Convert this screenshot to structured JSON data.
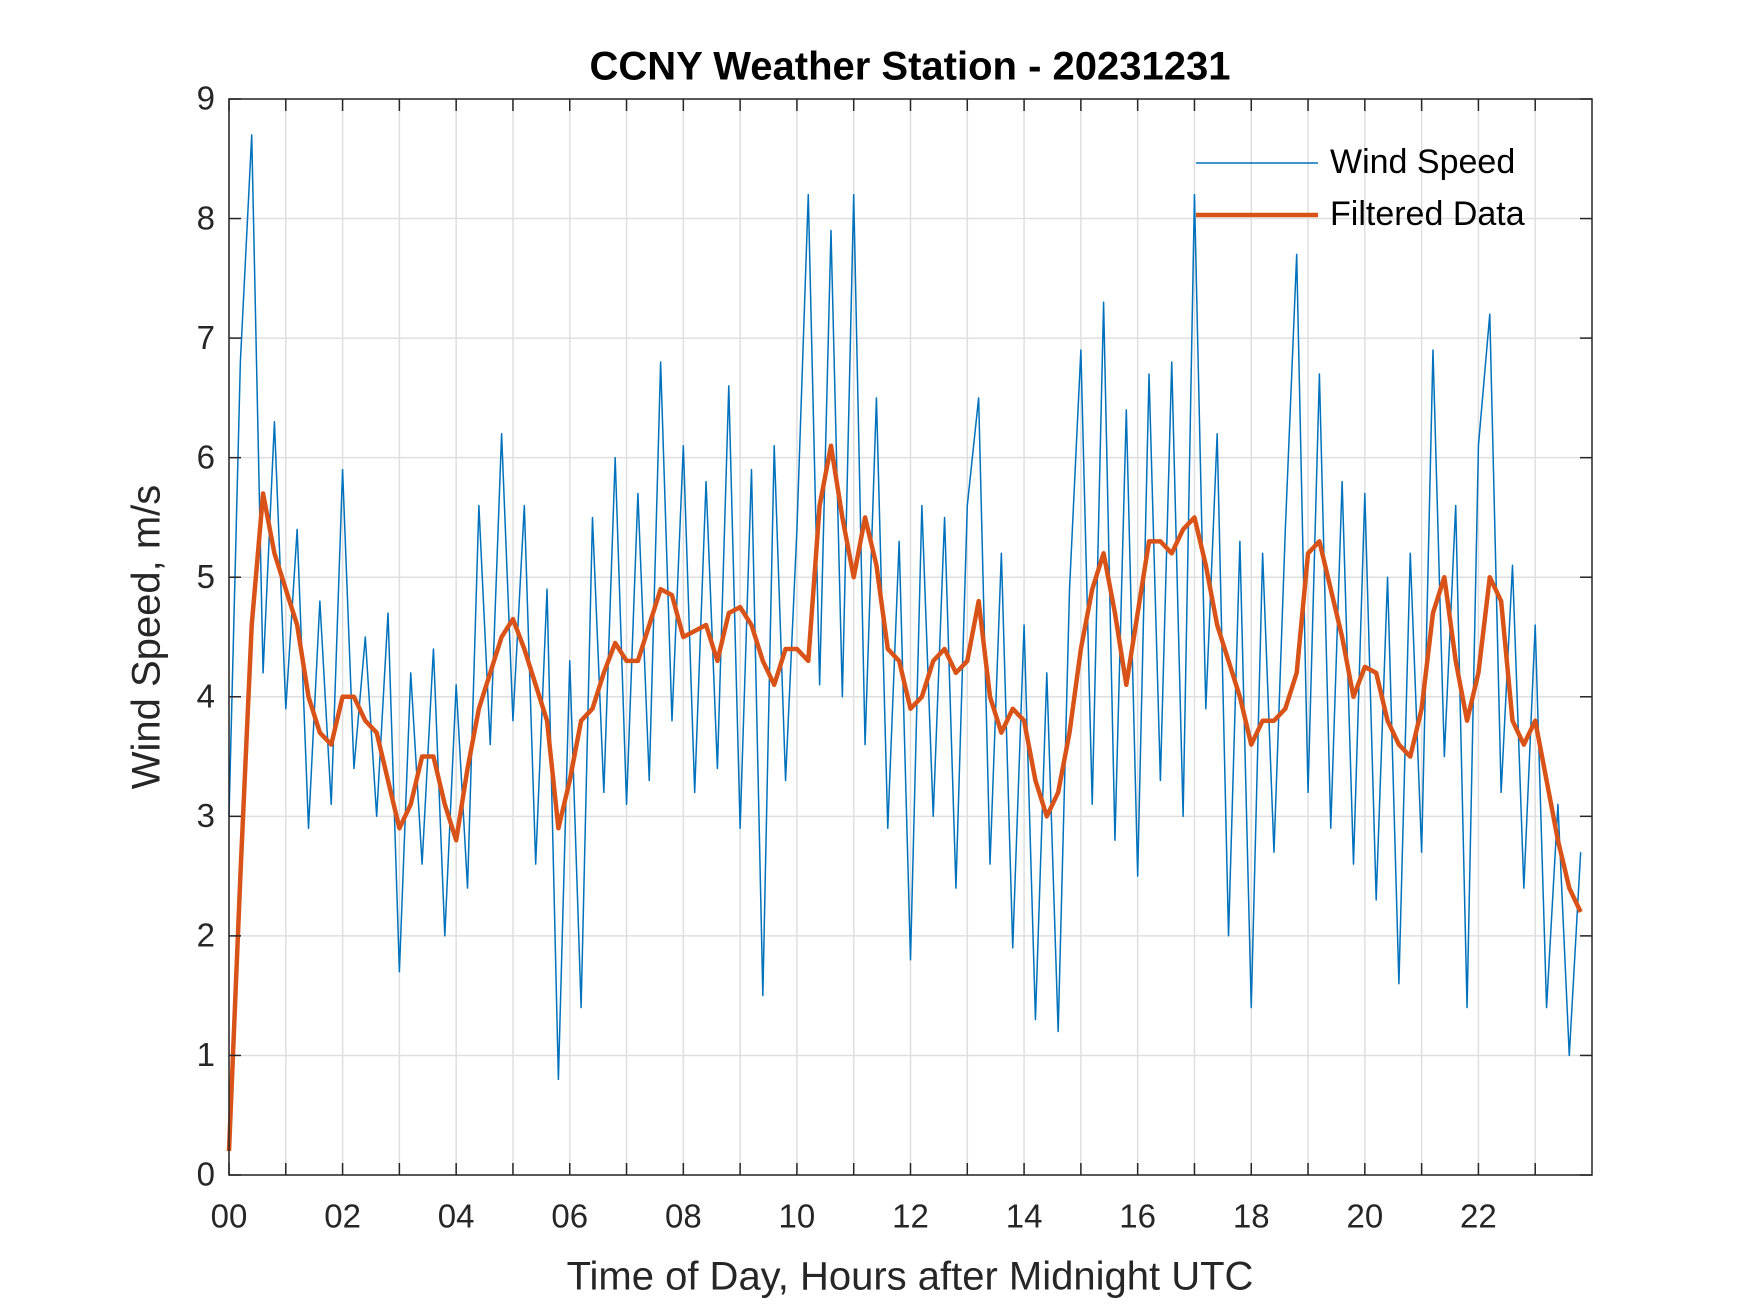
{
  "chart_data": {
    "type": "line",
    "title": "CCNY Weather Station - 20231231",
    "x_label": "Time of Day, Hours after Midnight UTC",
    "y_label": "Wind Speed, m/s",
    "x": [
      0,
      0.2,
      0.4,
      0.6,
      0.8,
      1,
      1.2,
      1.4,
      1.6,
      1.8,
      2,
      2.2,
      2.4,
      2.6,
      2.8,
      3,
      3.2,
      3.4,
      3.6,
      3.8,
      4,
      4.2,
      4.4,
      4.6,
      4.8,
      5,
      5.2,
      5.4,
      5.6,
      5.8,
      6,
      6.2,
      6.4,
      6.6,
      6.8,
      7,
      7.2,
      7.4,
      7.6,
      7.8,
      8,
      8.2,
      8.4,
      8.6,
      8.8,
      9,
      9.2,
      9.4,
      9.6,
      9.8,
      10,
      10.2,
      10.4,
      10.6,
      10.8,
      11,
      11.2,
      11.4,
      11.6,
      11.8,
      12,
      12.2,
      12.4,
      12.6,
      12.8,
      13,
      13.2,
      13.4,
      13.6,
      13.8,
      14,
      14.2,
      14.4,
      14.6,
      14.8,
      15,
      15.2,
      15.4,
      15.6,
      15.8,
      16,
      16.2,
      16.4,
      16.6,
      16.8,
      17,
      17.2,
      17.4,
      17.6,
      17.8,
      18,
      18.2,
      18.4,
      18.6,
      18.8,
      19,
      19.2,
      19.4,
      19.6,
      19.8,
      20,
      20.2,
      20.4,
      20.6,
      20.8,
      21,
      21.2,
      21.4,
      21.6,
      21.8,
      22,
      22.2,
      22.4,
      22.6,
      22.8,
      23,
      23.2,
      23.4,
      23.6,
      23.8
    ],
    "series": [
      {
        "name": "Wind Speed",
        "color": "#0072bd",
        "width": 1.5,
        "values": [
          3.0,
          6.8,
          8.7,
          4.2,
          6.3,
          3.9,
          5.4,
          2.9,
          4.8,
          3.1,
          5.9,
          3.4,
          4.5,
          3.0,
          4.7,
          1.7,
          4.2,
          2.6,
          4.4,
          2.0,
          4.1,
          2.4,
          5.6,
          3.6,
          6.2,
          3.8,
          5.6,
          2.6,
          4.9,
          0.8,
          4.3,
          1.4,
          5.5,
          3.2,
          6.0,
          3.1,
          5.7,
          3.3,
          6.8,
          3.8,
          6.1,
          3.2,
          5.8,
          3.4,
          6.6,
          2.9,
          5.9,
          1.5,
          6.1,
          3.3,
          5.4,
          8.2,
          4.1,
          7.9,
          4.0,
          8.2,
          3.6,
          6.5,
          2.9,
          5.3,
          1.8,
          5.6,
          3.0,
          5.5,
          2.4,
          5.6,
          6.5,
          2.6,
          5.2,
          1.9,
          4.6,
          1.3,
          4.2,
          1.2,
          4.9,
          6.9,
          3.1,
          7.3,
          2.8,
          6.4,
          2.5,
          6.7,
          3.3,
          6.8,
          3.0,
          8.2,
          3.9,
          6.2,
          2.0,
          5.3,
          1.4,
          5.2,
          2.7,
          5.4,
          7.7,
          3.2,
          6.7,
          2.9,
          5.8,
          2.6,
          5.7,
          2.3,
          5.0,
          1.6,
          5.2,
          2.7,
          6.9,
          3.5,
          5.6,
          1.4,
          6.1,
          7.2,
          3.2,
          5.1,
          2.4,
          4.6,
          1.4,
          3.1,
          1.0,
          2.7
        ]
      },
      {
        "name": "Filtered Data",
        "color": "#d95319",
        "width": 4.5,
        "values": [
          0.2,
          2.5,
          4.6,
          5.7,
          5.2,
          4.9,
          4.6,
          4.0,
          3.7,
          3.6,
          4.0,
          4.0,
          3.8,
          3.7,
          3.3,
          2.9,
          3.1,
          3.5,
          3.5,
          3.1,
          2.8,
          3.4,
          3.9,
          4.2,
          4.5,
          4.65,
          4.4,
          4.1,
          3.8,
          2.9,
          3.3,
          3.8,
          3.9,
          4.2,
          4.45,
          4.3,
          4.3,
          4.6,
          4.9,
          4.85,
          4.5,
          4.55,
          4.6,
          4.3,
          4.7,
          4.75,
          4.6,
          4.3,
          4.1,
          4.4,
          4.4,
          4.3,
          5.6,
          6.1,
          5.5,
          5.0,
          5.5,
          5.1,
          4.4,
          4.3,
          3.9,
          4.0,
          4.3,
          4.4,
          4.2,
          4.3,
          4.8,
          4.0,
          3.7,
          3.9,
          3.8,
          3.3,
          3.0,
          3.2,
          3.7,
          4.4,
          4.9,
          5.2,
          4.7,
          4.1,
          4.7,
          5.3,
          5.3,
          5.2,
          5.4,
          5.5,
          5.1,
          4.6,
          4.3,
          4.0,
          3.6,
          3.8,
          3.8,
          3.9,
          4.2,
          5.2,
          5.3,
          4.9,
          4.5,
          4.0,
          4.25,
          4.2,
          3.8,
          3.6,
          3.5,
          3.9,
          4.7,
          5.0,
          4.3,
          3.8,
          4.2,
          5.0,
          4.8,
          3.8,
          3.6,
          3.8,
          3.3,
          2.8,
          2.4,
          2.2
        ]
      }
    ],
    "xlim": [
      0,
      24
    ],
    "ylim": [
      0,
      9
    ],
    "xticks": [
      {
        "value": 0,
        "label": "00"
      },
      {
        "value": 2,
        "label": "02"
      },
      {
        "value": 4,
        "label": "04"
      },
      {
        "value": 6,
        "label": "06"
      },
      {
        "value": 8,
        "label": "08"
      },
      {
        "value": 10,
        "label": "10"
      },
      {
        "value": 12,
        "label": "12"
      },
      {
        "value": 14,
        "label": "14"
      },
      {
        "value": 16,
        "label": "16"
      },
      {
        "value": 18,
        "label": "18"
      },
      {
        "value": 20,
        "label": "20"
      },
      {
        "value": 22,
        "label": "22"
      }
    ],
    "x_minor_ticks": [
      1,
      3,
      5,
      7,
      9,
      11,
      13,
      15,
      17,
      19,
      21,
      23
    ],
    "yticks": [
      0,
      1,
      2,
      3,
      4,
      5,
      6,
      7,
      8,
      9
    ],
    "grid": true,
    "legend": "northeast"
  }
}
